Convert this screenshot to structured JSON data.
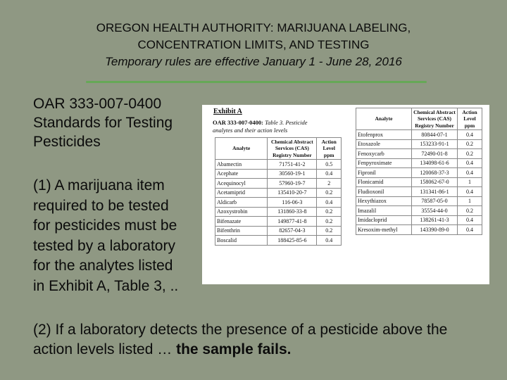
{
  "header": {
    "title_line1": "OREGON HEALTH AUTHORITY: MARIJUANA LABELING,",
    "title_line2": "CONCENTRATION LIMITS, AND TESTING",
    "subtitle": "Temporary rules are effective January 1 - June 28, 2016"
  },
  "body": {
    "block1_line1": "OAR 333-007-0400",
    "block1_line2": "Standards for Testing",
    "block1_line3": "Pesticides",
    "block2_lines": [
      "(1) A marijuana item",
      "required to be tested",
      "for pesticides must be",
      "tested by a laboratory",
      "for the analytes listed",
      "in Exhibit A, Table 3, .."
    ],
    "block3_text": "(2) If a laboratory detects the presence of a pesticide above the action levels listed … ",
    "block3_bold": "the sample fails."
  },
  "colors": {
    "background": "#8f9883",
    "rule": "#66a857"
  },
  "exhibit": {
    "title": "Exhibit A",
    "caption_bold": "OAR 333-007-0400:",
    "caption_text": " Table 3. Pesticide analytes and their action levels",
    "headers": {
      "analyte": "Analyte",
      "cas": "Chemical Abstract Services (CAS) Registry Number",
      "action": "Action Level ppm"
    },
    "left_rows": [
      {
        "analyte": "Abamectin",
        "cas": "71751-41-2",
        "level": "0.5"
      },
      {
        "analyte": "Acephate",
        "cas": "30560-19-1",
        "level": "0.4"
      },
      {
        "analyte": "Acequinocyl",
        "cas": "57960-19-7",
        "level": "2"
      },
      {
        "analyte": "Acetamiprid",
        "cas": "135410-20-7",
        "level": "0.2"
      },
      {
        "analyte": "Aldicarb",
        "cas": "116-06-3",
        "level": "0.4"
      },
      {
        "analyte": "Azoxystrobin",
        "cas": "131860-33-8",
        "level": "0.2"
      },
      {
        "analyte": "Bifenazate",
        "cas": "149877-41-8",
        "level": "0.2"
      },
      {
        "analyte": "Bifenthrin",
        "cas": "82657-04-3",
        "level": "0.2"
      },
      {
        "analyte": "Boscalid",
        "cas": "188425-85-6",
        "level": "0.4"
      }
    ],
    "right_rows": [
      {
        "analyte": "Etofenprox",
        "cas": "80844-07-1",
        "level": "0.4"
      },
      {
        "analyte": "Etoxazole",
        "cas": "153233-91-1",
        "level": "0.2"
      },
      {
        "analyte": "Fenoxycarb",
        "cas": "72490-01-8",
        "level": "0.2"
      },
      {
        "analyte": "Fenpyroximate",
        "cas": "134098-61-6",
        "level": "0.4"
      },
      {
        "analyte": "Fipronil",
        "cas": "120068-37-3",
        "level": "0.4"
      },
      {
        "analyte": "Flonicamid",
        "cas": "158062-67-0",
        "level": "1"
      },
      {
        "analyte": "Fludioxonil",
        "cas": "131341-86-1",
        "level": "0.4"
      },
      {
        "analyte": "Hexythiazox",
        "cas": "78587-05-0",
        "level": "1"
      },
      {
        "analyte": "Imazalil",
        "cas": "35554-44-0",
        "level": "0.2"
      },
      {
        "analyte": "Imidacloprid",
        "cas": "138261-41-3",
        "level": "0.4"
      },
      {
        "analyte": "Kresoxim-methyl",
        "cas": "143390-89-0",
        "level": "0.4"
      }
    ]
  }
}
